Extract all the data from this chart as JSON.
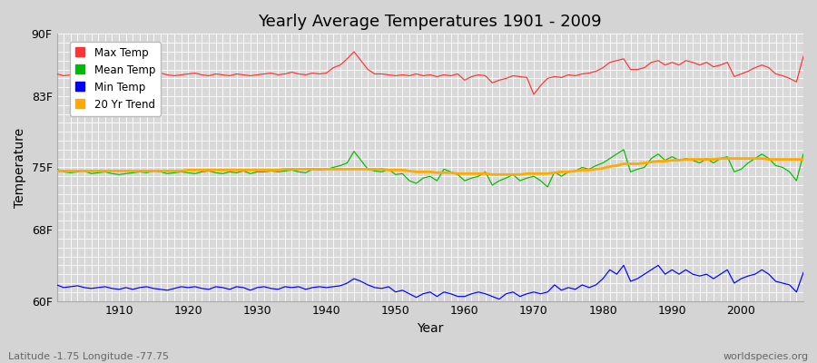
{
  "title": "Yearly Average Temperatures 1901 - 2009",
  "xlabel": "Year",
  "ylabel": "Temperature",
  "bottom_left": "Latitude -1.75 Longitude -77.75",
  "bottom_right": "worldspecies.org",
  "years": [
    1901,
    1902,
    1903,
    1904,
    1905,
    1906,
    1907,
    1908,
    1909,
    1910,
    1911,
    1912,
    1913,
    1914,
    1915,
    1916,
    1917,
    1918,
    1919,
    1920,
    1921,
    1922,
    1923,
    1924,
    1925,
    1926,
    1927,
    1928,
    1929,
    1930,
    1931,
    1932,
    1933,
    1934,
    1935,
    1936,
    1937,
    1938,
    1939,
    1940,
    1941,
    1942,
    1943,
    1944,
    1945,
    1946,
    1947,
    1948,
    1949,
    1950,
    1951,
    1952,
    1953,
    1954,
    1955,
    1956,
    1957,
    1958,
    1959,
    1960,
    1961,
    1962,
    1963,
    1964,
    1965,
    1966,
    1967,
    1968,
    1969,
    1970,
    1971,
    1972,
    1973,
    1974,
    1975,
    1976,
    1977,
    1978,
    1979,
    1980,
    1981,
    1982,
    1983,
    1984,
    1985,
    1986,
    1987,
    1988,
    1989,
    1990,
    1991,
    1992,
    1993,
    1994,
    1995,
    1996,
    1997,
    1998,
    1999,
    2000,
    2001,
    2002,
    2003,
    2004,
    2005,
    2006,
    2007,
    2008,
    2009
  ],
  "max_temp": [
    85.5,
    85.3,
    85.4,
    85.2,
    85.3,
    85.4,
    85.3,
    85.4,
    85.2,
    85.3,
    85.4,
    85.5,
    85.3,
    85.5,
    85.5,
    85.6,
    85.4,
    85.3,
    85.4,
    85.5,
    85.6,
    85.4,
    85.3,
    85.5,
    85.4,
    85.3,
    85.5,
    85.4,
    85.3,
    85.4,
    85.5,
    85.6,
    85.4,
    85.5,
    85.7,
    85.5,
    85.4,
    85.6,
    85.5,
    85.6,
    86.2,
    86.5,
    87.2,
    88.0,
    87.0,
    86.0,
    85.5,
    85.5,
    85.4,
    85.3,
    85.4,
    85.3,
    85.5,
    85.3,
    85.4,
    85.2,
    85.4,
    85.3,
    85.5,
    84.8,
    85.2,
    85.4,
    85.3,
    84.5,
    84.8,
    85.0,
    85.3,
    85.2,
    85.1,
    83.2,
    84.2,
    85.0,
    85.2,
    85.1,
    85.4,
    85.3,
    85.5,
    85.6,
    85.8,
    86.2,
    86.8,
    87.0,
    87.2,
    86.0,
    86.0,
    86.2,
    86.8,
    87.0,
    86.5,
    86.8,
    86.5,
    87.0,
    86.8,
    86.5,
    86.8,
    86.3,
    86.5,
    86.8,
    85.2,
    85.5,
    85.8,
    86.2,
    86.5,
    86.2,
    85.5,
    85.3,
    85.0,
    84.6,
    87.5
  ],
  "mean_temp": [
    74.8,
    74.5,
    74.4,
    74.5,
    74.6,
    74.3,
    74.4,
    74.5,
    74.3,
    74.2,
    74.3,
    74.4,
    74.5,
    74.4,
    74.6,
    74.5,
    74.3,
    74.4,
    74.5,
    74.4,
    74.3,
    74.5,
    74.6,
    74.4,
    74.3,
    74.5,
    74.4,
    74.6,
    74.3,
    74.5,
    74.5,
    74.6,
    74.5,
    74.6,
    74.7,
    74.5,
    74.4,
    74.8,
    74.7,
    74.8,
    75.0,
    75.2,
    75.5,
    76.8,
    75.8,
    74.8,
    74.6,
    74.5,
    74.8,
    74.2,
    74.3,
    73.5,
    73.2,
    73.8,
    74.0,
    73.5,
    74.8,
    74.5,
    74.2,
    73.5,
    73.8,
    74.0,
    74.5,
    73.0,
    73.5,
    73.8,
    74.2,
    73.5,
    73.8,
    74.0,
    73.5,
    72.8,
    74.5,
    74.0,
    74.5,
    74.6,
    75.0,
    74.8,
    75.2,
    75.5,
    76.0,
    76.5,
    77.0,
    74.5,
    74.8,
    75.0,
    76.0,
    76.5,
    75.8,
    76.2,
    75.8,
    76.0,
    75.8,
    75.5,
    76.0,
    75.5,
    76.0,
    76.2,
    74.5,
    74.8,
    75.5,
    76.0,
    76.5,
    76.0,
    75.2,
    75.0,
    74.5,
    73.5,
    76.5
  ],
  "min_temp": [
    61.8,
    61.5,
    61.6,
    61.7,
    61.5,
    61.4,
    61.5,
    61.6,
    61.4,
    61.3,
    61.5,
    61.3,
    61.5,
    61.6,
    61.4,
    61.3,
    61.2,
    61.4,
    61.6,
    61.5,
    61.6,
    61.4,
    61.3,
    61.6,
    61.5,
    61.3,
    61.6,
    61.5,
    61.2,
    61.5,
    61.6,
    61.4,
    61.3,
    61.6,
    61.5,
    61.6,
    61.3,
    61.5,
    61.6,
    61.5,
    61.6,
    61.7,
    62.0,
    62.5,
    62.2,
    61.8,
    61.5,
    61.4,
    61.6,
    61.0,
    61.2,
    60.8,
    60.4,
    60.8,
    61.0,
    60.5,
    61.0,
    60.8,
    60.5,
    60.5,
    60.8,
    61.0,
    60.8,
    60.5,
    60.2,
    60.8,
    61.0,
    60.5,
    60.8,
    61.0,
    60.8,
    61.0,
    61.8,
    61.2,
    61.5,
    61.3,
    61.8,
    61.5,
    61.8,
    62.5,
    63.5,
    63.0,
    64.0,
    62.2,
    62.5,
    63.0,
    63.5,
    64.0,
    63.0,
    63.5,
    63.0,
    63.5,
    63.0,
    62.8,
    63.0,
    62.5,
    63.0,
    63.5,
    62.0,
    62.5,
    62.8,
    63.0,
    63.5,
    63.0,
    62.2,
    62.0,
    61.8,
    61.0,
    63.2
  ],
  "trend": [
    74.6,
    74.6,
    74.6,
    74.6,
    74.6,
    74.6,
    74.6,
    74.6,
    74.6,
    74.6,
    74.6,
    74.6,
    74.6,
    74.6,
    74.6,
    74.6,
    74.6,
    74.6,
    74.6,
    74.7,
    74.7,
    74.7,
    74.7,
    74.7,
    74.7,
    74.7,
    74.7,
    74.7,
    74.7,
    74.7,
    74.7,
    74.7,
    74.7,
    74.8,
    74.8,
    74.8,
    74.8,
    74.8,
    74.8,
    74.8,
    74.8,
    74.8,
    74.8,
    74.8,
    74.8,
    74.8,
    74.8,
    74.8,
    74.7,
    74.7,
    74.7,
    74.6,
    74.5,
    74.5,
    74.5,
    74.4,
    74.4,
    74.4,
    74.3,
    74.3,
    74.3,
    74.3,
    74.3,
    74.2,
    74.2,
    74.2,
    74.2,
    74.2,
    74.3,
    74.3,
    74.3,
    74.3,
    74.4,
    74.5,
    74.5,
    74.6,
    74.7,
    74.7,
    74.8,
    74.9,
    75.1,
    75.2,
    75.4,
    75.4,
    75.4,
    75.5,
    75.6,
    75.7,
    75.7,
    75.8,
    75.8,
    75.9,
    75.9,
    75.9,
    75.9,
    75.9,
    76.0,
    76.0,
    76.0,
    76.0,
    76.0,
    76.0,
    76.0,
    75.9,
    75.9,
    75.9,
    75.9,
    75.9,
    75.9
  ],
  "ylim": [
    60,
    90
  ],
  "yticks": [
    60,
    68,
    75,
    83,
    90
  ],
  "ytick_labels": [
    "60F",
    "68F",
    "75F",
    "83F",
    "90F"
  ],
  "xlim": [
    1901,
    2009
  ],
  "xticks": [
    1910,
    1920,
    1930,
    1940,
    1950,
    1960,
    1970,
    1980,
    1990,
    2000
  ],
  "bg_color": "#d4d4d4",
  "plot_bg_color": "#d8d8d8",
  "grid_color": "#ffffff",
  "max_color": "#ff3333",
  "mean_color": "#00bb00",
  "min_color": "#0000ff",
  "trend_color": "#ffaa00",
  "legend_colors": [
    "#ff3333",
    "#00bb00",
    "#0000ff",
    "#ffaa00"
  ],
  "legend_labels": [
    "Max Temp",
    "Mean Temp",
    "Min Temp",
    "20 Yr Trend"
  ]
}
